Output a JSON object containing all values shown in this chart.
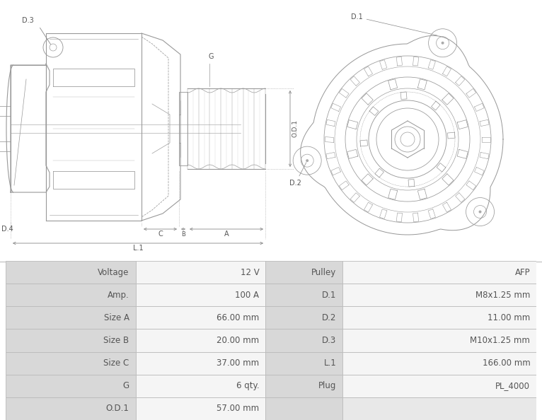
{
  "table_rows": [
    [
      "Voltage",
      "12 V",
      "Pulley",
      "AFP"
    ],
    [
      "Amp.",
      "100 A",
      "D.1",
      "M8x1.25 mm"
    ],
    [
      "Size A",
      "66.00 mm",
      "D.2",
      "11.00 mm"
    ],
    [
      "Size B",
      "20.00 mm",
      "D.3",
      "M10x1.25 mm"
    ],
    [
      "Size C",
      "37.00 mm",
      "L.1",
      "166.00 mm"
    ],
    [
      "G",
      "6 qty.",
      "Plug",
      "PL_4000"
    ],
    [
      "O.D.1",
      "57.00 mm",
      "",
      ""
    ]
  ],
  "table_bg_label": "#d8d8d8",
  "table_bg_white": "#f5f5f5",
  "table_bg_empty": "#e8e8e8",
  "border_color": "#bbbbbb",
  "text_color": "#555555",
  "fig_bg": "#ffffff",
  "lc": "#999999",
  "lc2": "#aaaaaa"
}
